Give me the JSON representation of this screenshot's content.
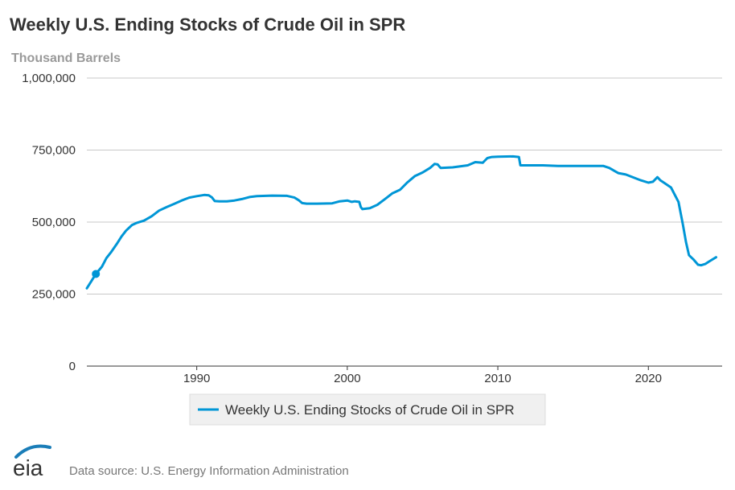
{
  "chart_data": {
    "type": "line",
    "title": "Weekly U.S. Ending Stocks of Crude Oil in SPR",
    "units": "Thousand Barrels",
    "ylim": [
      0,
      1000000
    ],
    "yticks": [
      0,
      250000,
      500000,
      750000,
      1000000
    ],
    "ytick_labels": [
      "0",
      "250,000",
      "500,000",
      "750,000",
      "1,000,000"
    ],
    "xlim": [
      1982.7,
      2024.9
    ],
    "xticks": [
      1990,
      2000,
      2010,
      2020
    ],
    "xtick_labels": [
      "1990",
      "2000",
      "2010",
      "2020"
    ],
    "grid": true,
    "legend_position": "bottom-center",
    "series": [
      {
        "name": "Weekly U.S. Ending Stocks of Crude Oil in SPR",
        "color": "#0096d6",
        "x": [
          1982.7,
          1983.0,
          1983.3,
          1983.7,
          1984.0,
          1984.3,
          1984.7,
          1985.0,
          1985.3,
          1985.7,
          1986.0,
          1986.5,
          1987.0,
          1987.5,
          1988.0,
          1988.5,
          1989.0,
          1989.5,
          1990.0,
          1990.5,
          1990.8,
          1991.0,
          1991.2,
          1991.5,
          1992.0,
          1992.5,
          1993.0,
          1993.5,
          1994.0,
          1995.0,
          1996.0,
          1996.5,
          1996.8,
          1997.0,
          1997.3,
          1998.0,
          1999.0,
          1999.5,
          2000.0,
          2000.3,
          2000.5,
          2000.8,
          2000.9,
          2001.0,
          2001.5,
          2002.0,
          2002.5,
          2003.0,
          2003.5,
          2004.0,
          2004.5,
          2005.0,
          2005.5,
          2005.8,
          2006.0,
          2006.2,
          2007.0,
          2008.0,
          2008.5,
          2009.0,
          2009.3,
          2009.6,
          2010.0,
          2011.0,
          2011.4,
          2011.5,
          2012.0,
          2013.0,
          2014.0,
          2015.0,
          2016.0,
          2017.0,
          2017.4,
          2018.0,
          2018.5,
          2019.0,
          2019.5,
          2020.0,
          2020.3,
          2020.6,
          2020.8,
          2021.0,
          2021.5,
          2022.0,
          2022.3,
          2022.5,
          2022.7,
          2022.9,
          2023.0,
          2023.3,
          2023.5,
          2023.8,
          2024.0,
          2024.5
        ],
        "y": [
          270000,
          295000,
          320000,
          345000,
          375000,
          395000,
          425000,
          450000,
          470000,
          490000,
          497000,
          505000,
          520000,
          540000,
          552000,
          563000,
          575000,
          585000,
          590000,
          594000,
          593000,
          586000,
          573000,
          572000,
          572000,
          575000,
          580000,
          587000,
          590000,
          592000,
          591000,
          585000,
          575000,
          566000,
          564000,
          564000,
          565000,
          572000,
          575000,
          570000,
          572000,
          570000,
          552000,
          545000,
          548000,
          560000,
          580000,
          600000,
          612000,
          638000,
          660000,
          672000,
          688000,
          702000,
          700000,
          688000,
          690000,
          697000,
          708000,
          706000,
          722000,
          726000,
          727000,
          728000,
          726000,
          697000,
          697000,
          697000,
          695000,
          695000,
          695000,
          695000,
          688000,
          670000,
          665000,
          655000,
          645000,
          637000,
          640000,
          656000,
          645000,
          638000,
          620000,
          570000,
          490000,
          430000,
          385000,
          375000,
          370000,
          352000,
          350000,
          355000,
          362000,
          378000
        ]
      }
    ]
  },
  "legend": {
    "label": "Weekly U.S. Ending Stocks of Crude Oil in SPR"
  },
  "footer": {
    "logo": "eia",
    "source": "Data source: U.S. Energy Information Administration"
  },
  "colors": {
    "series": "#0096d6",
    "grid": "#c8c8c8",
    "logo_swoosh": "#1a7db8"
  }
}
